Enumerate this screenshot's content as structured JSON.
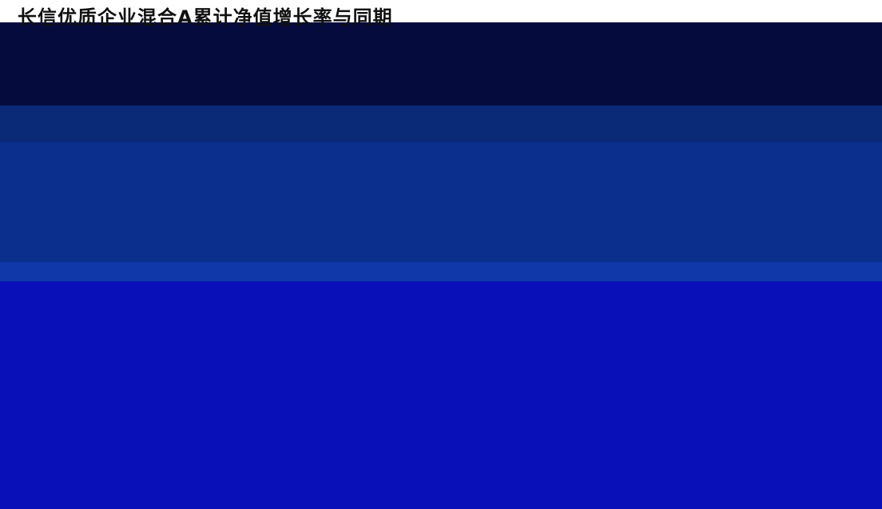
{
  "header": {
    "title": "长信优质企业混合A累计净值增长率与同期"
  }
}
